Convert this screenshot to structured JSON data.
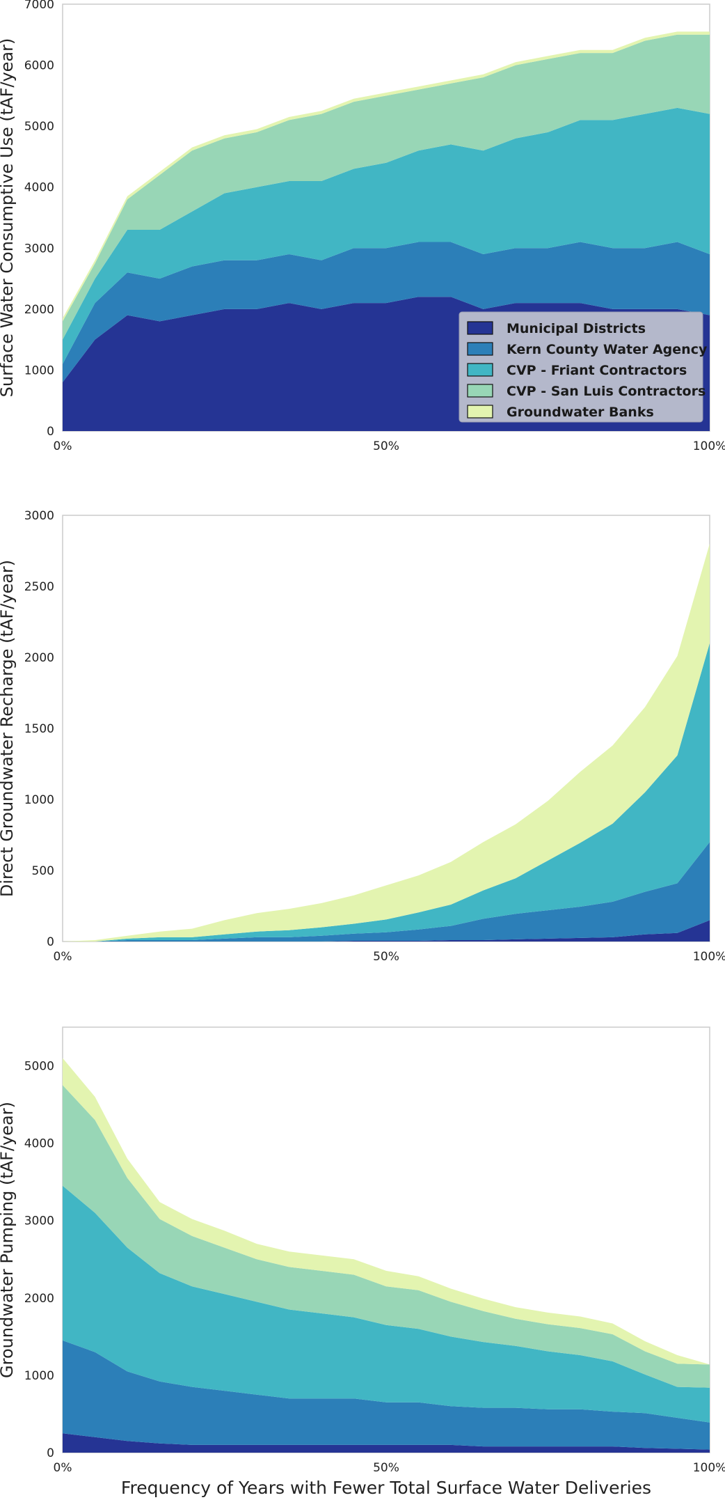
{
  "colors": {
    "Municipal Districts": "#253494",
    "Kern County Water Agency": "#2c7fb8",
    "CVP - Friant Contractors": "#41b6c4",
    "CVP - San Luis Contractors": "#98d6b6",
    "Groundwater Banks": "#e3f4b0"
  },
  "chart_data": [
    {
      "type": "area",
      "stacked": true,
      "ylabel": "Surface Water Consumptive Use (tAF/year)",
      "xlabel": "",
      "ylim": [
        0,
        7000
      ],
      "yticks": [
        "0",
        "1000",
        "2000",
        "3000",
        "4000",
        "5000",
        "6000",
        "7000"
      ],
      "xticks": [
        "0%",
        "50%",
        "100%"
      ],
      "grid": false,
      "legend_position": "lower-right",
      "legend": [
        "Municipal Districts",
        "Kern County Water Agency",
        "CVP - Friant Contractors",
        "CVP - San Luis Contractors",
        "Groundwater Banks"
      ],
      "x": [
        0,
        5,
        10,
        15,
        20,
        25,
        30,
        35,
        40,
        45,
        50,
        55,
        60,
        65,
        70,
        75,
        80,
        85,
        90,
        95,
        100
      ],
      "series": [
        {
          "name": "Municipal Districts",
          "values": [
            800,
            1500,
            1900,
            1800,
            1900,
            2000,
            2000,
            2100,
            2000,
            2100,
            2100,
            2200,
            2200,
            2000,
            2100,
            2100,
            2100,
            2000,
            2000,
            2000,
            1900
          ]
        },
        {
          "name": "Kern County Water Agency",
          "values": [
            300,
            600,
            700,
            700,
            800,
            800,
            800,
            800,
            800,
            900,
            900,
            900,
            900,
            900,
            900,
            900,
            1000,
            1000,
            1000,
            1100,
            1000
          ]
        },
        {
          "name": "CVP - Friant Contractors",
          "values": [
            400,
            400,
            700,
            800,
            900,
            1100,
            1200,
            1200,
            1300,
            1300,
            1400,
            1500,
            1600,
            1700,
            1800,
            1900,
            2000,
            2100,
            2200,
            2200,
            2300
          ]
        },
        {
          "name": "CVP - San Luis Contractors",
          "values": [
            300,
            250,
            500,
            900,
            1000,
            900,
            900,
            1000,
            1100,
            1100,
            1100,
            1000,
            1000,
            1200,
            1200,
            1200,
            1100,
            1100,
            1200,
            1200,
            1300
          ]
        },
        {
          "name": "Groundwater Banks",
          "values": [
            50,
            50,
            50,
            50,
            50,
            50,
            50,
            50,
            50,
            50,
            50,
            50,
            50,
            50,
            50,
            50,
            50,
            50,
            50,
            50,
            50
          ]
        }
      ]
    },
    {
      "type": "area",
      "stacked": true,
      "ylabel": "Direct Groundwater Recharge (tAF/year)",
      "xlabel": "",
      "ylim": [
        0,
        3000
      ],
      "yticks": [
        "0",
        "500",
        "1000",
        "1500",
        "2000",
        "2500",
        "3000"
      ],
      "xticks": [
        "0%",
        "50%",
        "100%"
      ],
      "grid": false,
      "x": [
        0,
        5,
        10,
        15,
        20,
        25,
        30,
        35,
        40,
        45,
        50,
        55,
        60,
        65,
        70,
        75,
        80,
        85,
        90,
        95,
        100
      ],
      "series": [
        {
          "name": "Municipal Districts",
          "values": [
            0,
            0,
            0,
            0,
            0,
            0,
            0,
            0,
            0,
            5,
            5,
            5,
            10,
            10,
            15,
            20,
            25,
            30,
            50,
            60,
            150
          ]
        },
        {
          "name": "Kern County Water Agency",
          "values": [
            0,
            0,
            10,
            10,
            10,
            20,
            30,
            30,
            40,
            50,
            60,
            80,
            100,
            150,
            180,
            200,
            220,
            250,
            300,
            350,
            550
          ]
        },
        {
          "name": "CVP - Friant Contractors",
          "values": [
            0,
            0,
            10,
            20,
            20,
            30,
            40,
            50,
            60,
            70,
            90,
            120,
            150,
            200,
            250,
            350,
            450,
            550,
            700,
            900,
            1400
          ]
        },
        {
          "name": "CVP - San Luis Contractors",
          "values": [
            0,
            0,
            0,
            0,
            0,
            0,
            0,
            0,
            0,
            0,
            0,
            0,
            0,
            0,
            0,
            0,
            0,
            0,
            0,
            0,
            0
          ]
        },
        {
          "name": "Groundwater Banks",
          "values": [
            0,
            10,
            20,
            40,
            60,
            100,
            130,
            150,
            170,
            200,
            240,
            260,
            300,
            340,
            380,
            420,
            500,
            550,
            600,
            700,
            700
          ]
        }
      ]
    },
    {
      "type": "area",
      "stacked": true,
      "ylabel": "Groundwater Pumping (tAF/year)",
      "xlabel": "Frequency of Years with Fewer Total Surface Water Deliveries",
      "ylim": [
        0,
        5500
      ],
      "yticks": [
        "0",
        "1000",
        "2000",
        "3000",
        "4000",
        "5000"
      ],
      "xticks": [
        "0%",
        "50%",
        "100%"
      ],
      "grid": false,
      "x": [
        0,
        5,
        10,
        15,
        20,
        25,
        30,
        35,
        40,
        45,
        50,
        55,
        60,
        65,
        70,
        75,
        80,
        85,
        90,
        95,
        100
      ],
      "series": [
        {
          "name": "Municipal Districts",
          "values": [
            250,
            200,
            150,
            120,
            100,
            100,
            100,
            100,
            100,
            100,
            100,
            100,
            100,
            80,
            80,
            80,
            80,
            80,
            60,
            50,
            40
          ]
        },
        {
          "name": "Kern County Water Agency",
          "values": [
            1200,
            1100,
            900,
            800,
            750,
            700,
            650,
            600,
            600,
            600,
            550,
            550,
            500,
            500,
            500,
            480,
            480,
            450,
            450,
            400,
            350
          ]
        },
        {
          "name": "CVP - Friant Contractors",
          "values": [
            2000,
            1800,
            1600,
            1400,
            1300,
            1250,
            1200,
            1150,
            1100,
            1050,
            1000,
            950,
            900,
            850,
            800,
            750,
            700,
            650,
            500,
            400,
            450
          ]
        },
        {
          "name": "CVP - San Luis Contractors",
          "values": [
            1300,
            1200,
            900,
            700,
            650,
            600,
            550,
            550,
            550,
            550,
            500,
            500,
            450,
            400,
            350,
            350,
            350,
            350,
            300,
            300,
            300
          ]
        },
        {
          "name": "Groundwater Banks",
          "values": [
            350,
            300,
            250,
            220,
            220,
            220,
            200,
            200,
            200,
            200,
            200,
            180,
            170,
            160,
            150,
            150,
            150,
            140,
            130,
            110,
            0
          ]
        }
      ]
    }
  ]
}
